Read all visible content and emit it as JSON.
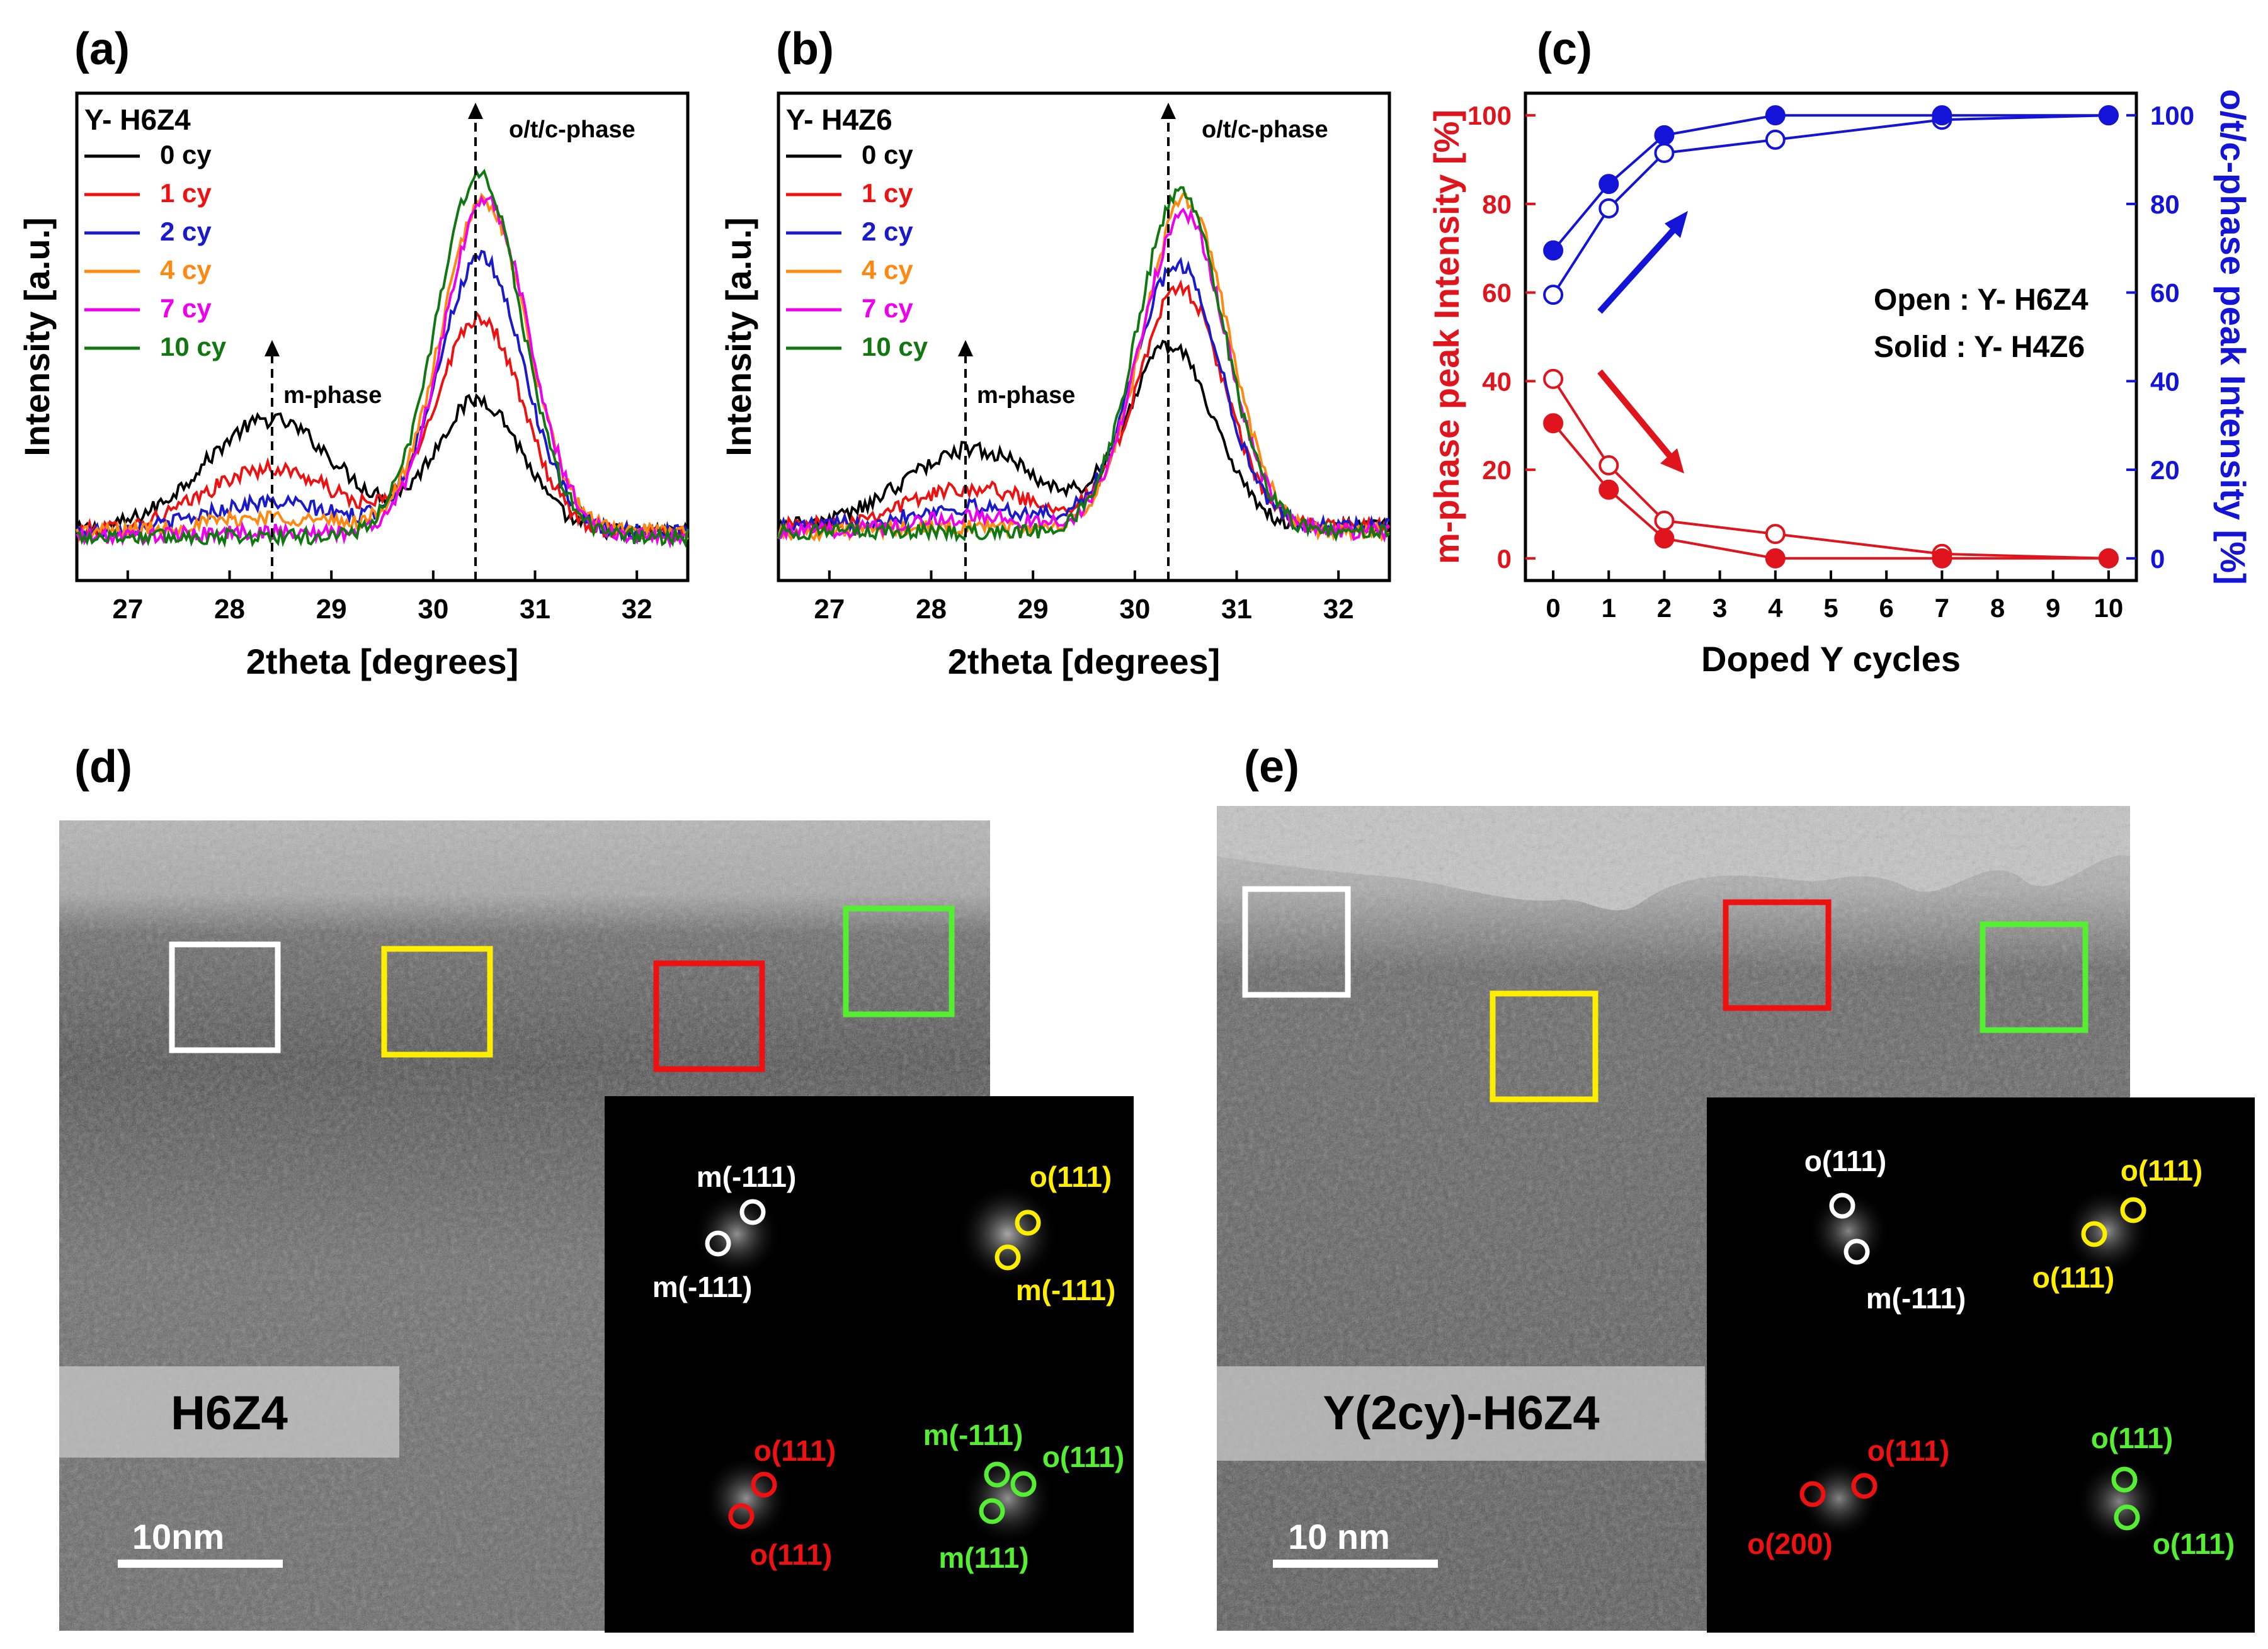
{
  "panel_labels": {
    "a": "(a)",
    "b": "(b)",
    "c": "(c)",
    "d": "(d)",
    "e": "(e)"
  },
  "legend_cycles": [
    "0 cy",
    "1 cy",
    "2 cy",
    "4 cy",
    "7 cy",
    "10 cy"
  ],
  "colors": {
    "series": [
      "#000000",
      "#ee1111",
      "#1a1acc",
      "#ff8811",
      "#ee00ee",
      "#117711"
    ],
    "m_axis": "#e0141c",
    "o_axis": "#1414d8",
    "white_box": "#ffffff",
    "yellow_box": "#ffee00",
    "red_box": "#ee1111",
    "green_box": "#55ee33"
  },
  "chart_data": [
    {
      "type": "line",
      "panel": "a",
      "title": "Y- H6Z4",
      "xlabel": "2theta [degrees]",
      "ylabel": "Intensity [a.u.]",
      "xlim": [
        26.5,
        32.5
      ],
      "ylim": [
        0,
        100
      ],
      "xticks": [
        27,
        28,
        29,
        30,
        31,
        32
      ],
      "annotations": [
        {
          "text": "m-phase",
          "x": 28.4
        },
        {
          "text": "o/t/c-phase",
          "x": 30.4
        }
      ],
      "series": [
        {
          "name": "0 cy",
          "baseline": 10,
          "m_height": 23,
          "o_height": 27,
          "o_center": 30.45
        },
        {
          "name": "1 cy",
          "baseline": 10,
          "m_height": 13,
          "o_height": 44,
          "o_center": 30.45
        },
        {
          "name": "2 cy",
          "baseline": 10,
          "m_height": 6,
          "o_height": 56,
          "o_center": 30.47
        },
        {
          "name": "4 cy",
          "baseline": 10,
          "m_height": 3,
          "o_height": 68,
          "o_center": 30.5
        },
        {
          "name": "7 cy",
          "baseline": 9,
          "m_height": 1,
          "o_height": 69,
          "o_center": 30.52
        },
        {
          "name": "10 cy",
          "baseline": 9,
          "m_height": 0,
          "o_height": 74,
          "o_center": 30.45
        }
      ]
    },
    {
      "type": "line",
      "panel": "b",
      "title": "Y- H4Z6",
      "xlabel": "2theta [degrees]",
      "ylabel": "Intensity [a.u.]",
      "xlim": [
        26.5,
        32.5
      ],
      "ylim": [
        0,
        100
      ],
      "xticks": [
        27,
        28,
        29,
        30,
        31,
        32
      ],
      "annotations": [
        {
          "text": "m-phase",
          "x": 28.35
        },
        {
          "text": "o/t/c-phase",
          "x": 30.3
        }
      ],
      "series": [
        {
          "name": "0 cy",
          "baseline": 11,
          "m_height": 16,
          "o_height": 37,
          "o_center": 30.35
        },
        {
          "name": "1 cy",
          "baseline": 11,
          "m_height": 8,
          "o_height": 49,
          "o_center": 30.45
        },
        {
          "name": "2 cy",
          "baseline": 11,
          "m_height": 4,
          "o_height": 54,
          "o_center": 30.42
        },
        {
          "name": "4 cy",
          "baseline": 10,
          "m_height": 1,
          "o_height": 68,
          "o_center": 30.5
        },
        {
          "name": "7 cy",
          "baseline": 10,
          "m_height": 3,
          "o_height": 65,
          "o_center": 30.48
        },
        {
          "name": "10 cy",
          "baseline": 10,
          "m_height": 0,
          "o_height": 70,
          "o_center": 30.45
        }
      ]
    },
    {
      "type": "scatter",
      "panel": "c",
      "xlabel": "Doped Y cycles",
      "ylabel_left": "m-phase peak Intensity [%]",
      "ylabel_right": "o/t/c-phase peak Intensity [%]",
      "xlim": [
        -0.5,
        10.5
      ],
      "ylim": [
        -5,
        105
      ],
      "xticks": [
        0,
        1,
        2,
        3,
        4,
        5,
        6,
        7,
        8,
        9,
        10
      ],
      "yticks": [
        0,
        20,
        40,
        60,
        80,
        100
      ],
      "legend_open": "Open : Y- H6Z4",
      "legend_solid": "Solid : Y- H4Z6",
      "x": [
        0,
        1,
        2,
        4,
        7,
        10
      ],
      "series": [
        {
          "name": "o/t/c-phase Y- H6Z4 (open)",
          "axis": "right",
          "values": [
            59.5,
            79,
            91.5,
            94.5,
            99,
            100
          ]
        },
        {
          "name": "o/t/c-phase Y- H4Z6 (solid)",
          "axis": "right",
          "values": [
            69.5,
            84.5,
            95.5,
            100,
            100,
            100
          ]
        },
        {
          "name": "m-phase Y- H6Z4 (open)",
          "axis": "left",
          "values": [
            40.5,
            21,
            8.5,
            5.5,
            1,
            0
          ]
        },
        {
          "name": "m-phase Y- H4Z6 (solid)",
          "axis": "left",
          "values": [
            30.5,
            15.5,
            4.5,
            0,
            0,
            0
          ]
        }
      ]
    }
  ],
  "panel_d": {
    "sample_label": "H6Z4",
    "scale_bar": "10nm",
    "fft": [
      {
        "labels": [
          "m(-111)",
          "m(-111)"
        ]
      },
      {
        "labels": [
          "o(111)",
          "m(-111)"
        ]
      },
      {
        "labels": [
          "o(111)",
          "o(111)"
        ]
      },
      {
        "labels": [
          "m(-111)",
          "o(111)",
          "m(111)"
        ]
      }
    ]
  },
  "panel_e": {
    "sample_label": "Y(2cy)-H6Z4",
    "scale_bar": "10 nm",
    "fft": [
      {
        "labels": [
          "o(111)",
          "m(-111)"
        ]
      },
      {
        "labels": [
          "o(111)",
          "o(111)"
        ]
      },
      {
        "labels": [
          "o(111)",
          "o(200)"
        ]
      },
      {
        "labels": [
          "o(111)",
          "o(111)"
        ]
      }
    ]
  }
}
